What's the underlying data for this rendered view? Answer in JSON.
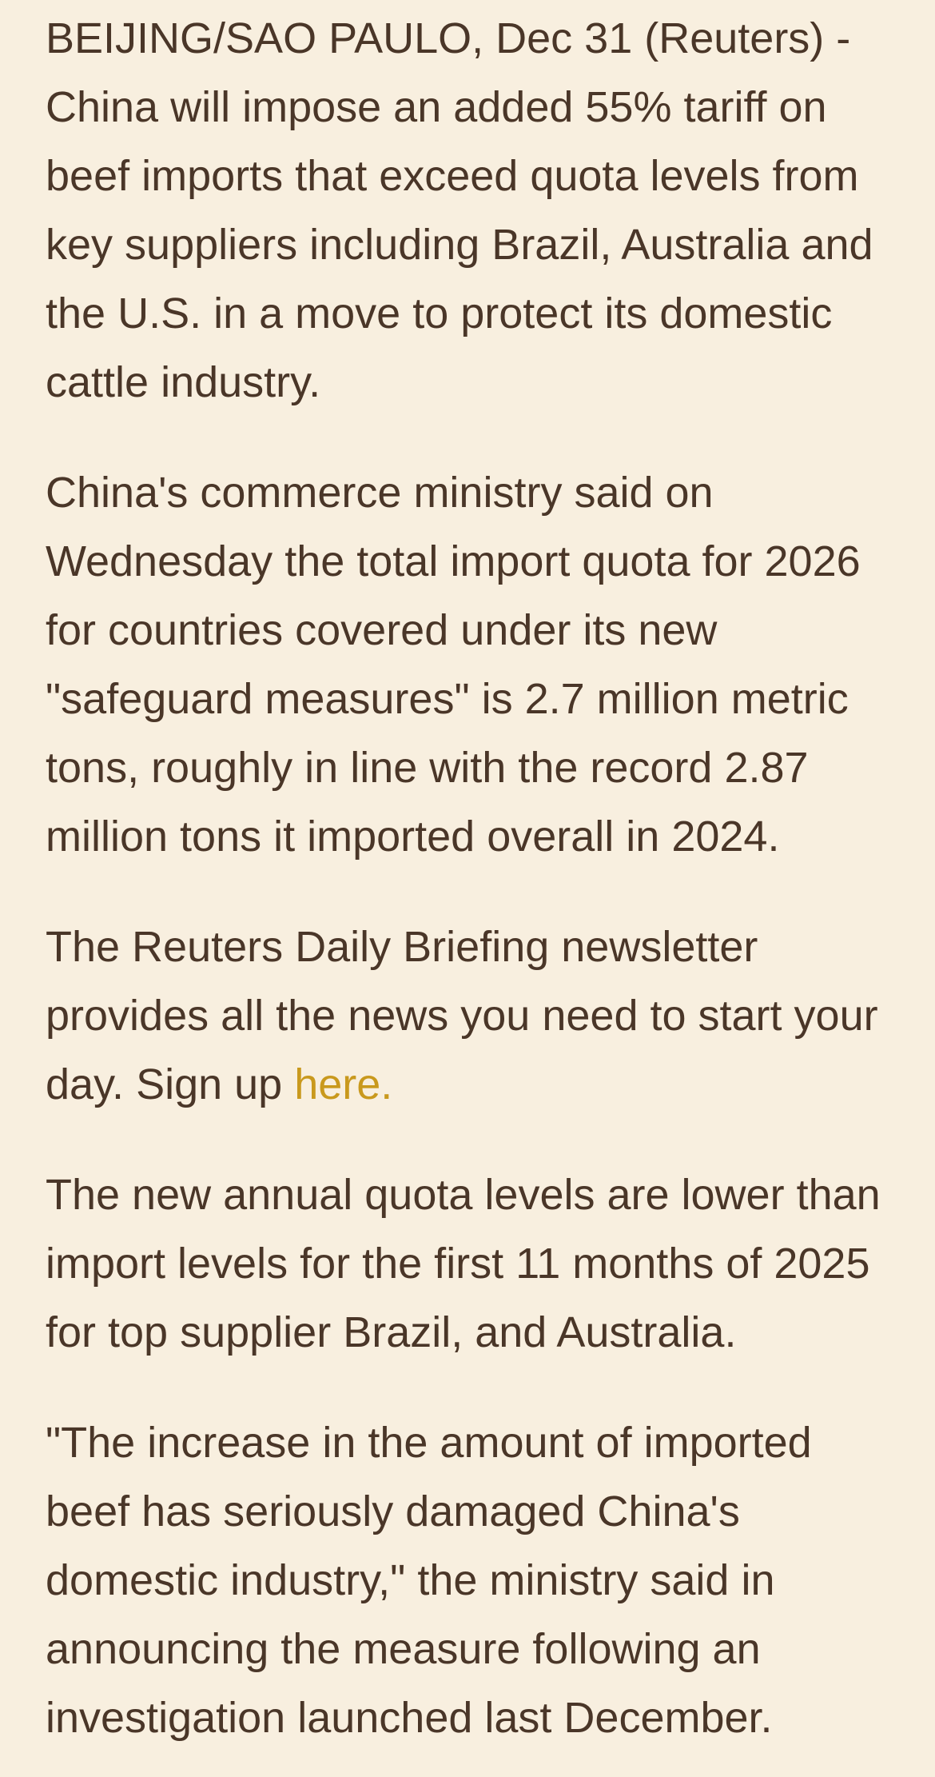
{
  "page": {
    "background_color": "#F8EFDF",
    "text_color": "#4A3628",
    "link_color": "#C9991D"
  },
  "article": {
    "paragraphs": [
      {
        "segments": [
          {
            "text": "BEIJING/SAO PAULO, Dec 31 (Reuters) - China will impose an added 55% tariff on beef imports that exceed quota levels from key suppliers including Brazil, Australia and the U.S. in a move to protect its domestic cattle industry."
          }
        ]
      },
      {
        "segments": [
          {
            "text": "China's commerce ministry said on Wednesday the total import quota for 2026 for countries covered under its new \"safeguard measures\" is 2.7 million metric tons, roughly in line with the record 2.87 million tons it imported overall in 2024."
          }
        ]
      },
      {
        "segments": [
          {
            "text": "The Reuters Daily Briefing newsletter provides all the news you need to start your day. Sign up "
          },
          {
            "text": "here.",
            "link": true
          }
        ]
      },
      {
        "segments": [
          {
            "text": "The new annual quota levels are lower than import levels for the first 11 months of 2025 for top supplier Brazil, and Australia."
          }
        ]
      },
      {
        "segments": [
          {
            "text": "\"The increase in the amount of imported beef has seriously damaged China's domestic industry,\" the ministry said in announcing the measure following an investigation launched last December."
          }
        ]
      }
    ]
  }
}
